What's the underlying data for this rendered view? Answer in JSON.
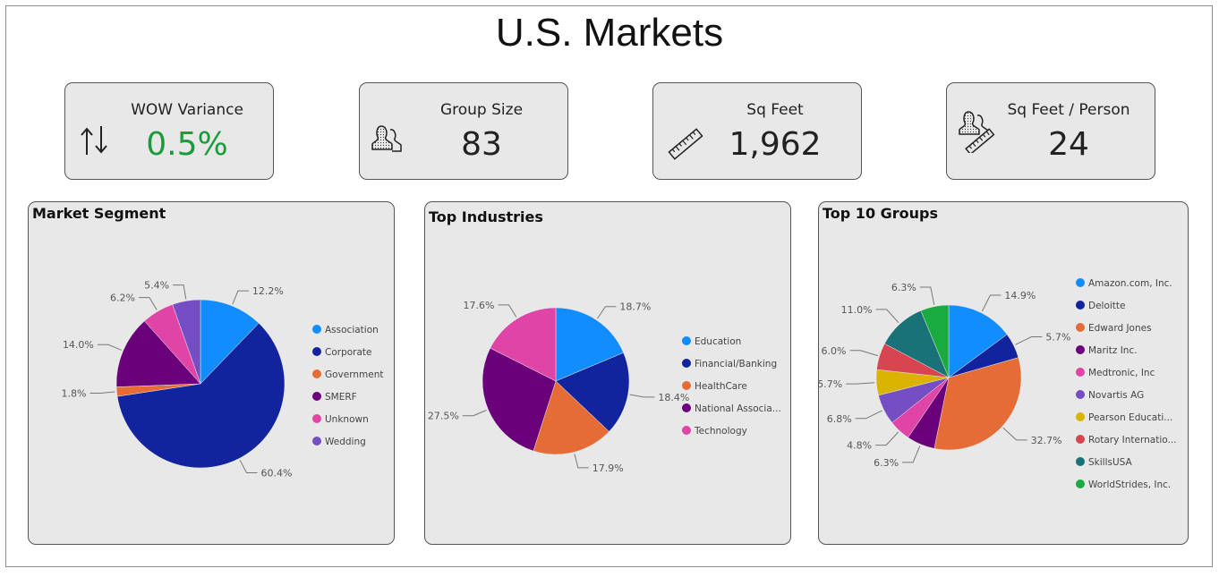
{
  "page": {
    "title": "U.S. Markets"
  },
  "kpis": [
    {
      "label": "WOW Variance",
      "value": "0.5%",
      "icon": "up-down-arrows-icon",
      "value_color": "#1a9c3a"
    },
    {
      "label": "Group Size",
      "value": "83",
      "icon": "people-icon",
      "value_color": "#222222"
    },
    {
      "label": "Sq Feet",
      "value": "1,962",
      "icon": "ruler-icon",
      "value_color": "#222222"
    },
    {
      "label": "Sq Feet / Person",
      "value": "24",
      "icon": "people-ruler-icon",
      "value_color": "#222222"
    }
  ],
  "colors": {
    "blue": "#118DFF",
    "navy": "#12239E",
    "orange": "#E66C37",
    "purple": "#6B007B",
    "pink": "#E044A7",
    "violet": "#744EC2",
    "gold": "#D9B300",
    "red": "#D64550",
    "teal": "#197278",
    "green": "#1AAB40"
  },
  "chart_data": [
    {
      "type": "pie",
      "title": "Market Segment",
      "legend": "right",
      "categories": [
        "Association",
        "Corporate",
        "Government",
        "SMERF",
        "Unknown",
        "Wedding"
      ],
      "values": [
        12.2,
        60.4,
        1.8,
        14.0,
        6.2,
        5.4
      ],
      "labels": [
        "12.2%",
        "60.4%",
        "1.8%",
        "14.0%",
        "6.2%",
        "5.4%"
      ],
      "colors": [
        "#118DFF",
        "#12239E",
        "#E66C37",
        "#6B007B",
        "#E044A7",
        "#744EC2"
      ]
    },
    {
      "type": "pie",
      "title": "Top Industries",
      "legend": "right",
      "categories": [
        "Education",
        "Financial/Banking",
        "HealthCare",
        "National Associa...",
        "Technology"
      ],
      "values": [
        18.7,
        18.4,
        17.9,
        27.5,
        17.6
      ],
      "labels": [
        "18.7%",
        "18.4%",
        "17.9%",
        "27.5%",
        "17.6%"
      ],
      "colors": [
        "#118DFF",
        "#12239E",
        "#E66C37",
        "#6B007B",
        "#E044A7"
      ]
    },
    {
      "type": "pie",
      "title": "Top 10 Groups",
      "legend": "right",
      "categories": [
        "Amazon.com, Inc.",
        "Deloitte",
        "Edward Jones",
        "Maritz Inc.",
        "Medtronic, Inc",
        "Novartis AG",
        "Pearson Educati...",
        "Rotary Internatio...",
        "SkillsUSA",
        "WorldStrides, Inc."
      ],
      "values": [
        14.9,
        5.7,
        32.7,
        6.3,
        4.8,
        6.8,
        5.7,
        6.0,
        11.0,
        6.3
      ],
      "labels": [
        "14.9%",
        "5.7%",
        "32.7%",
        "6.3%",
        "4.8%",
        "6.8%",
        "5.7%",
        "6.0%",
        "11.0%",
        "6.3%"
      ],
      "colors": [
        "#118DFF",
        "#12239E",
        "#E66C37",
        "#6B007B",
        "#E044A7",
        "#744EC2",
        "#D9B300",
        "#D64550",
        "#197278",
        "#1AAB40"
      ]
    }
  ]
}
